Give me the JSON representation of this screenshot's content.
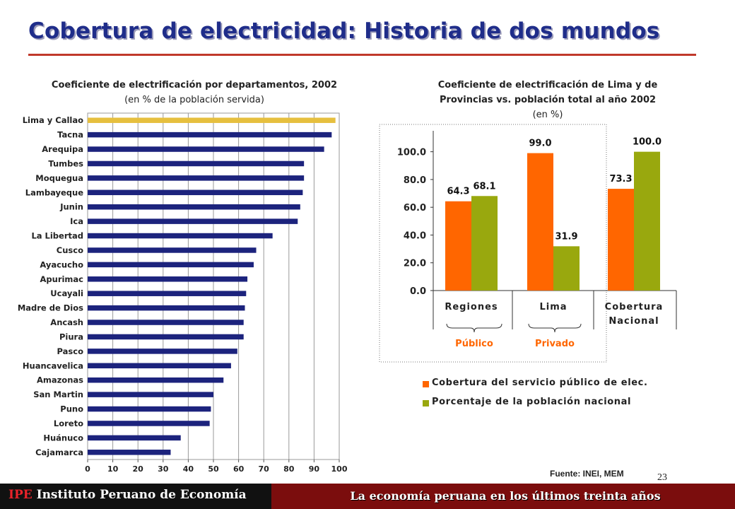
{
  "slide": {
    "title": "Cobertura de electricidad: Historia de dos mundos",
    "source": "Fuente: INEI, MEM",
    "page_number": "23",
    "footer_brand": "IPE",
    "footer_left": "Instituto Peruano de Economía",
    "footer_right": "La economía peruana en los últimos treinta años"
  },
  "colors": {
    "title": "#1f2d8a",
    "title_rule": "#c0392b",
    "navy_bar": "#1c237d",
    "highlight_bar": "#e6bf3e",
    "orange": "#ff6600",
    "olive": "#99a80e",
    "footer_red": "#7b0d0d",
    "footer_black": "#111111"
  },
  "left_chart": {
    "title": "Coeficiente de electrificación por departamentos, 2002",
    "subtitle": "(en % de la población servida)"
  },
  "right_chart": {
    "title_line1": "Coeficiente de electrificación de Lima y de",
    "title_line2": "Provincias vs. población total al año 2002",
    "subtitle": "(en %)",
    "brace_labels": [
      "Público",
      "Privado"
    ],
    "legend": [
      "Cobertura del servicio público de elec.",
      "Porcentaje de la población nacional"
    ]
  },
  "chart_data": [
    {
      "type": "bar",
      "orientation": "horizontal",
      "title": "Coeficiente de electrificación por departamentos, 2002",
      "subtitle": "(en % de la población servida)",
      "categories": [
        "Lima y Callao",
        "Tacna",
        "Arequipa",
        "Tumbes",
        "Moquegua",
        "Lambayeque",
        "Junin",
        "Ica",
        "La Libertad",
        "Cusco",
        "Ayacucho",
        "Apurimac",
        "Ucayali",
        "Madre de Dios",
        "Ancash",
        "Piura",
        "Pasco",
        "Huancavelica",
        "Amazonas",
        "San Martin",
        "Puno",
        "Loreto",
        "Huánuco",
        "Cajamarca"
      ],
      "values": [
        98.5,
        97,
        94,
        86,
        86,
        85.5,
        84.5,
        83.5,
        73.5,
        67,
        66,
        63.5,
        63,
        62.5,
        62,
        62,
        59.5,
        57,
        54,
        50,
        49,
        48.5,
        37,
        33
      ],
      "highlight_index": 0,
      "xlim": [
        0,
        100
      ],
      "xticks": [
        0,
        10,
        20,
        30,
        40,
        50,
        60,
        70,
        80,
        90,
        100
      ],
      "grid": true
    },
    {
      "type": "bar",
      "title": "Coeficiente de electrificación de Lima y de Provincias vs. población total al año 2002",
      "subtitle": "(en %)",
      "categories": [
        [
          "Regiones"
        ],
        [
          "Lima"
        ],
        [
          "Cobertura",
          "Nacional"
        ]
      ],
      "series": [
        {
          "name": "Cobertura del servicio público de elec.",
          "values": [
            64.3,
            99.0,
            73.3
          ],
          "labels": [
            "64.3",
            "99.0",
            "73.3"
          ]
        },
        {
          "name": "Porcentaje de la población nacional",
          "values": [
            68.1,
            31.9,
            100.0
          ],
          "labels": [
            "68.1",
            "31.9",
            "100.0"
          ]
        }
      ],
      "ylim": [
        0,
        110
      ],
      "yticks": [
        0,
        20,
        40,
        60,
        80,
        100
      ],
      "ytick_labels": [
        "0.0",
        "20.0",
        "40.0",
        "60.0",
        "80.0",
        "100.0"
      ],
      "legend_position": "bottom"
    }
  ]
}
